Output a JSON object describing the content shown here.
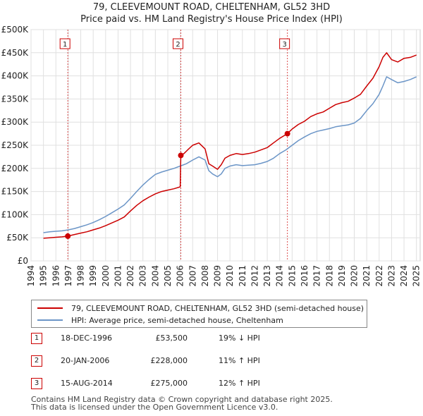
{
  "title": {
    "line1": "79, CLEEVEMOUNT ROAD, CHELTENHAM, GL52 3HD",
    "line2": "Price paid vs. HM Land Registry's House Price Index (HPI)"
  },
  "colors": {
    "property": "#cc0000",
    "hpi": "#6b95c7",
    "sale_marker": "#cc0000",
    "grid": "#e0e0e0"
  },
  "legend": {
    "property_label": "79, CLEEVEMOUNT ROAD, CHELTENHAM, GL52 3HD (semi-detached house)",
    "hpi_label": "HPI: Average price, semi-detached house, Cheltenham"
  },
  "sales": [
    {
      "num": "1",
      "date": "18-DEC-1996",
      "price": "£53,500",
      "hpi": "19% ↓ HPI"
    },
    {
      "num": "2",
      "date": "20-JAN-2006",
      "price": "£228,000",
      "hpi": "11% ↑ HPI"
    },
    {
      "num": "3",
      "date": "15-AUG-2014",
      "price": "£275,000",
      "hpi": "12% ↑ HPI"
    }
  ],
  "footer": {
    "line1": "Contains HM Land Registry data © Crown copyright and database right 2025.",
    "line2": "This data is licensed under the Open Government Licence v3.0."
  },
  "chart_data": {
    "type": "line",
    "title": "79, CLEEVEMOUNT ROAD, CHELTENHAM, GL52 3HD — Price paid vs. HM Land Registry's House Price Index (HPI)",
    "xlabel": "",
    "ylabel": "",
    "xlim": [
      1994,
      2025.3
    ],
    "ylim": [
      0,
      500000
    ],
    "x_ticks": [
      "1994",
      "1995",
      "1996",
      "1997",
      "1998",
      "1999",
      "2000",
      "2001",
      "2002",
      "2003",
      "2004",
      "2005",
      "2006",
      "2007",
      "2008",
      "2009",
      "2010",
      "2011",
      "2012",
      "2013",
      "2014",
      "2015",
      "2016",
      "2017",
      "2018",
      "2019",
      "2020",
      "2021",
      "2022",
      "2023",
      "2024",
      "2025"
    ],
    "y_ticks": [
      {
        "value": 0,
        "label": "£0"
      },
      {
        "value": 50000,
        "label": "£50K"
      },
      {
        "value": 100000,
        "label": "£100K"
      },
      {
        "value": 150000,
        "label": "£150K"
      },
      {
        "value": 200000,
        "label": "£200K"
      },
      {
        "value": 250000,
        "label": "£250K"
      },
      {
        "value": 300000,
        "label": "£300K"
      },
      {
        "value": 350000,
        "label": "£350K"
      },
      {
        "value": 400000,
        "label": "£400K"
      },
      {
        "value": 450000,
        "label": "£450K"
      },
      {
        "value": 500000,
        "label": "£500K"
      }
    ],
    "grid": true,
    "series": [
      {
        "name": "79, CLEEVEMOUNT ROAD, CHELTENHAM, GL52 3HD (semi-detached house)",
        "x": [
          1995.0,
          1995.5,
          1996.0,
          1996.5,
          1996.96,
          1997.5,
          1998.0,
          1998.5,
          1999.0,
          1999.5,
          2000.0,
          2000.5,
          2001.0,
          2001.5,
          2002.0,
          2002.5,
          2003.0,
          2003.5,
          2004.0,
          2004.5,
          2005.0,
          2005.5,
          2006.0,
          2006.05,
          2006.3,
          2006.6,
          2007.0,
          2007.5,
          2008.0,
          2008.3,
          2008.6,
          2009.0,
          2009.3,
          2009.6,
          2010.0,
          2010.5,
          2011.0,
          2011.5,
          2012.0,
          2012.5,
          2013.0,
          2013.5,
          2014.0,
          2014.62,
          2015.0,
          2015.5,
          2016.0,
          2016.5,
          2017.0,
          2017.5,
          2018.0,
          2018.5,
          2019.0,
          2019.5,
          2020.0,
          2020.5,
          2021.0,
          2021.5,
          2022.0,
          2022.3,
          2022.6,
          2023.0,
          2023.5,
          2024.0,
          2024.5,
          2025.0
        ],
        "values": [
          49000,
          50000,
          51000,
          52000,
          53500,
          57000,
          60000,
          63000,
          67000,
          71000,
          76000,
          82000,
          88000,
          95000,
          108000,
          120000,
          130000,
          138000,
          145000,
          150000,
          153000,
          156000,
          160000,
          228000,
          232000,
          240000,
          250000,
          255000,
          242000,
          210000,
          205000,
          198000,
          208000,
          222000,
          228000,
          232000,
          230000,
          232000,
          235000,
          240000,
          245000,
          255000,
          265000,
          275000,
          285000,
          295000,
          302000,
          312000,
          318000,
          322000,
          330000,
          338000,
          342000,
          345000,
          352000,
          360000,
          378000,
          395000,
          420000,
          440000,
          450000,
          435000,
          430000,
          438000,
          440000,
          445000
        ]
      },
      {
        "name": "HPI: Average price, semi-detached house, Cheltenham",
        "x": [
          1995.0,
          1995.5,
          1996.0,
          1996.5,
          1997.0,
          1997.5,
          1998.0,
          1998.5,
          1999.0,
          1999.5,
          2000.0,
          2000.5,
          2001.0,
          2001.5,
          2002.0,
          2002.5,
          2003.0,
          2003.5,
          2004.0,
          2004.5,
          2005.0,
          2005.5,
          2006.0,
          2006.5,
          2007.0,
          2007.5,
          2008.0,
          2008.3,
          2008.6,
          2009.0,
          2009.3,
          2009.6,
          2010.0,
          2010.5,
          2011.0,
          2011.5,
          2012.0,
          2012.5,
          2013.0,
          2013.5,
          2014.0,
          2014.5,
          2015.0,
          2015.5,
          2016.0,
          2016.5,
          2017.0,
          2017.5,
          2018.0,
          2018.5,
          2019.0,
          2019.5,
          2020.0,
          2020.5,
          2021.0,
          2021.5,
          2022.0,
          2022.3,
          2022.6,
          2023.0,
          2023.5,
          2024.0,
          2024.5,
          2025.0
        ],
        "values": [
          61000,
          63000,
          64000,
          65000,
          67000,
          70000,
          74000,
          78000,
          83000,
          89000,
          96000,
          104000,
          112000,
          121000,
          135000,
          150000,
          164000,
          176000,
          187000,
          192000,
          196000,
          200000,
          205000,
          210000,
          218000,
          225000,
          218000,
          195000,
          188000,
          182000,
          188000,
          200000,
          205000,
          208000,
          206000,
          207000,
          208000,
          211000,
          215000,
          222000,
          232000,
          240000,
          250000,
          260000,
          268000,
          275000,
          280000,
          283000,
          286000,
          290000,
          292000,
          294000,
          298000,
          308000,
          325000,
          340000,
          360000,
          378000,
          398000,
          392000,
          385000,
          388000,
          392000,
          398000
        ]
      }
    ],
    "sale_markers": [
      {
        "label": "1",
        "x": 1996.96,
        "value": 53500
      },
      {
        "label": "2",
        "x": 2006.05,
        "value": 228000
      },
      {
        "label": "3",
        "x": 2014.62,
        "value": 275000
      }
    ]
  }
}
